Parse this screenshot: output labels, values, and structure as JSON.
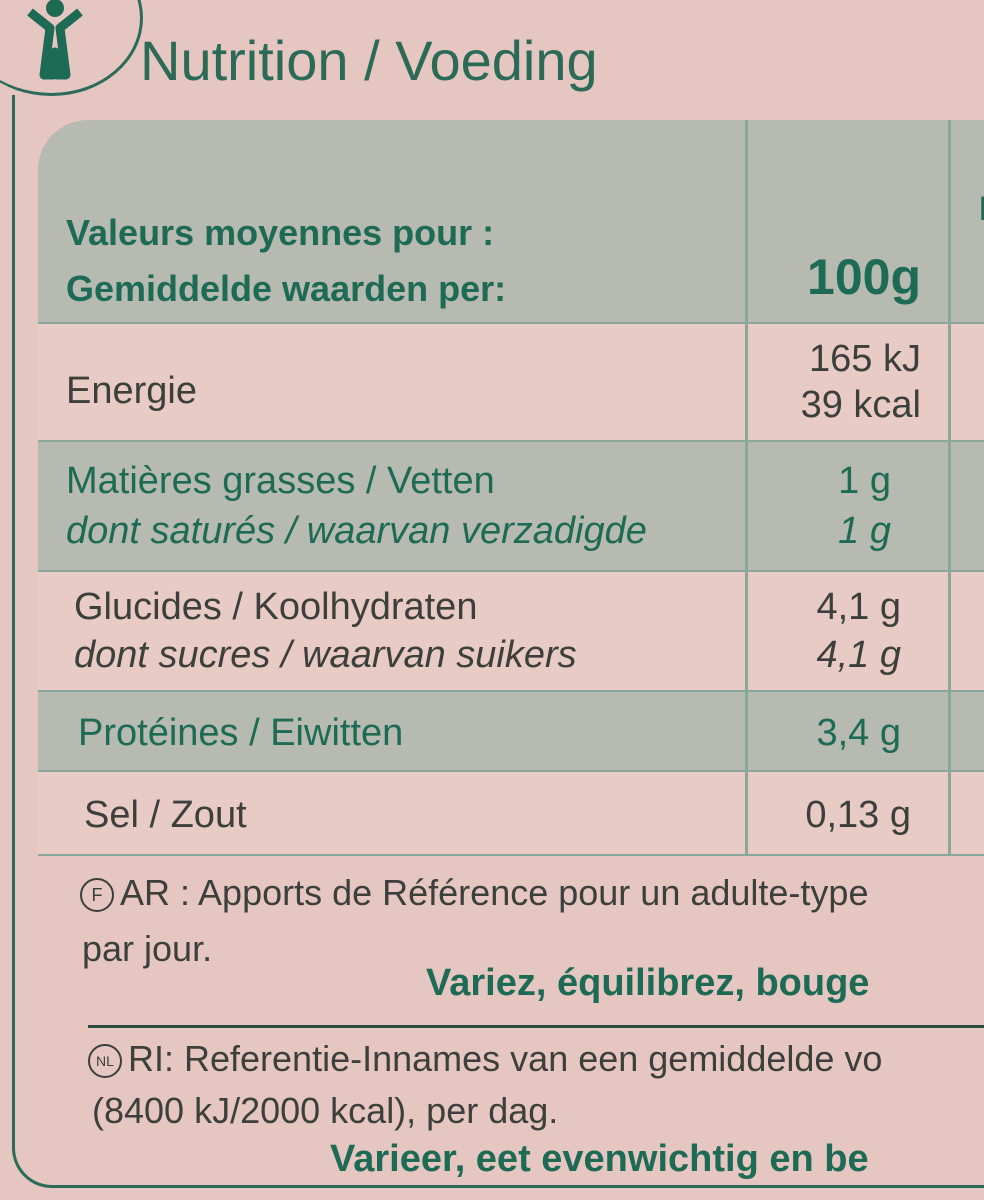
{
  "header": {
    "title": "Nutrition / Voeding",
    "logo_icon": "active-person-icon"
  },
  "colors": {
    "background": "#e6c6c1",
    "header_fill": "#b7bab0",
    "text_green": "#1d6a55"
  },
  "table": {
    "header": {
      "label_fr": "Valeurs moyennes pour :",
      "label_nl": "Gemiddelde waarden per:",
      "column": "100g",
      "next_column_partial": "E"
    },
    "rows": [
      {
        "label": "Energie",
        "value_1": "165 kJ",
        "value_2": "39 kcal"
      },
      {
        "label": "Matières grasses / Vetten",
        "value": "1 g",
        "sub_label": "dont saturés / waarvan verzadigde",
        "sub_value": "1 g"
      },
      {
        "label": "Glucides / Koolhydraten",
        "value": "4,1 g",
        "sub_label": "dont sucres / waarvan suikers",
        "sub_value": "4,1 g"
      },
      {
        "label": "Protéines / Eiwitten",
        "value": "3,4 g"
      },
      {
        "label": "Sel / Zout",
        "value": "0,13 g"
      }
    ]
  },
  "footer": {
    "fr_badge": "F",
    "fr_line1": "AR : Apports de Référence pour un adulte-type",
    "fr_line2": "par jour.",
    "fr_slogan": "Variez, équilibrez, bouge",
    "nl_badge": "NL",
    "nl_line1": "RI: Referentie-Innames van een gemiddelde vo",
    "nl_line2": "(8400 kJ/2000 kcal), per dag.",
    "nl_slogan": "Varieer, eet evenwichtig en be"
  }
}
